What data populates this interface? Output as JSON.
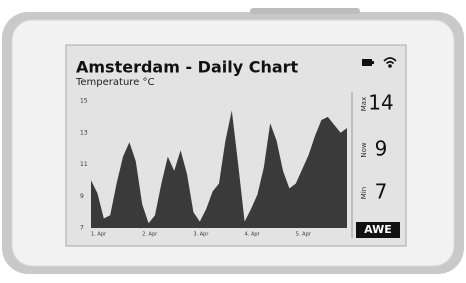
{
  "chart_data": {
    "type": "area",
    "title": "Amsterdam - Daily Chart",
    "subtitle": "Temperature °C",
    "categories": [
      "1. Apr",
      null,
      null,
      null,
      null,
      null,
      null,
      null,
      "2. Apr",
      null,
      null,
      null,
      null,
      null,
      null,
      null,
      "3. Apr",
      null,
      null,
      null,
      null,
      null,
      null,
      null,
      "4. Apr",
      null,
      null,
      null,
      null,
      null,
      null,
      null,
      "5. Apr",
      null,
      null,
      null,
      null,
      null,
      null,
      null,
      null
    ],
    "values": [
      10,
      9.2,
      7.6,
      7.8,
      9.8,
      11.5,
      12.4,
      11.2,
      8.5,
      7.3,
      7.8,
      9.8,
      11.5,
      10.6,
      11.9,
      10.4,
      8,
      7.4,
      8.2,
      9.3,
      9.8,
      12.5,
      14.4,
      11,
      7.4,
      8.2,
      9.1,
      10.8,
      13.6,
      12.5,
      10.6,
      9.5,
      9.8,
      10.7,
      11.6,
      12.8,
      13.8,
      14,
      13.5,
      13,
      13.3
    ],
    "color": "#3a3a3a",
    "ylim": [
      7,
      15
    ],
    "yticks": [
      7,
      9,
      11,
      13,
      15
    ],
    "grid": false
  },
  "panel": {
    "max": {
      "label": "Max",
      "value": 14
    },
    "now": {
      "label": "Now",
      "value": 9
    },
    "min": {
      "label": "Min",
      "value": 7
    }
  },
  "logo": "AWE"
}
